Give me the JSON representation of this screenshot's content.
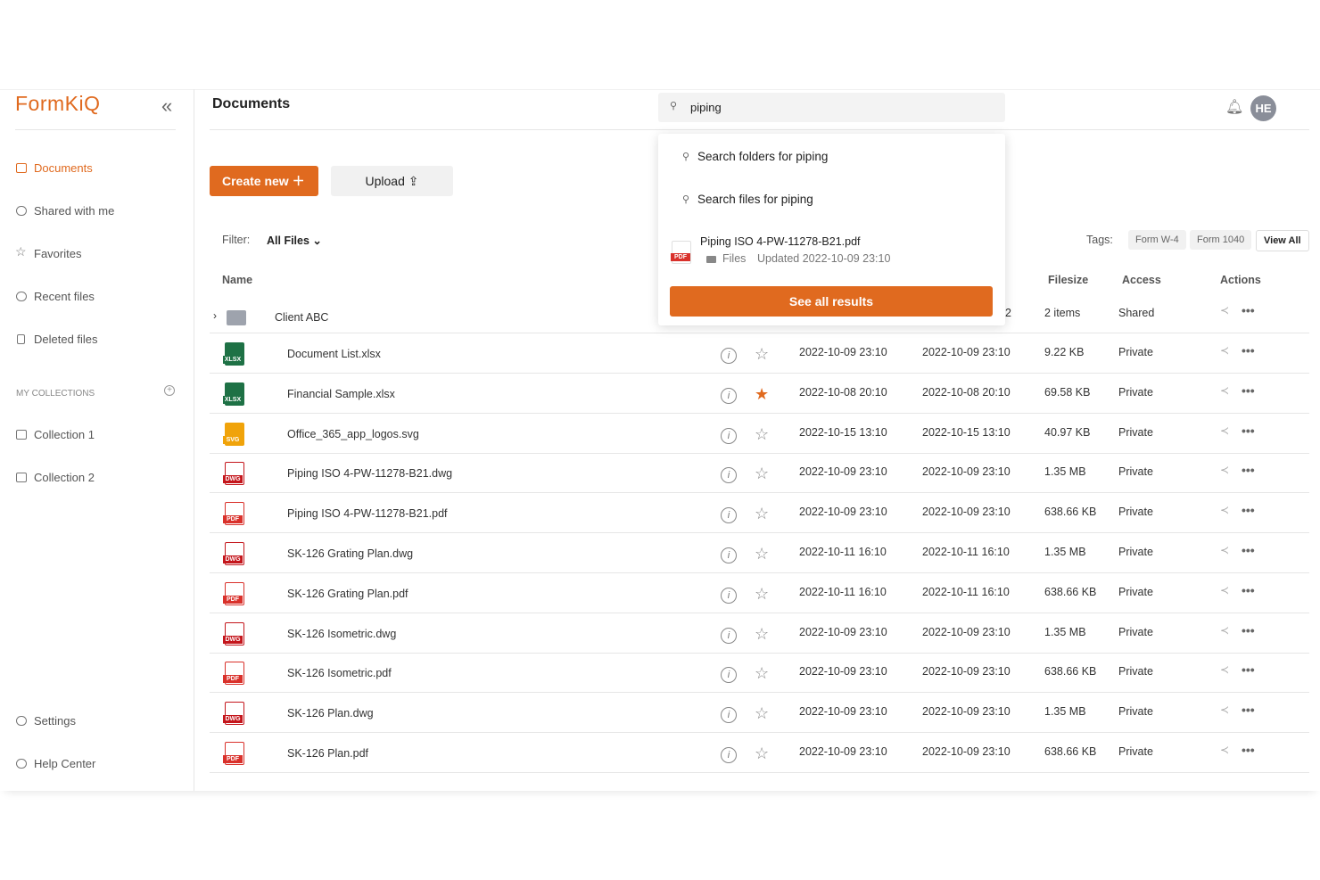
{
  "brand": "FormKiQ",
  "sidebar": {
    "nav": [
      "Documents",
      "Shared with me",
      "Favorites",
      "Recent files",
      "Deleted files"
    ],
    "collections_heading": "MY COLLECTIONS",
    "collections": [
      "Collection 1",
      "Collection 2"
    ],
    "footer": [
      "Settings",
      "Help Center"
    ]
  },
  "header": {
    "title": "Documents",
    "search": "piping",
    "avatar": "HE"
  },
  "toolbar": {
    "create": "Create new",
    "upload": "Upload",
    "filter_label": "Filter:",
    "filter_value": "All Files",
    "tags_label": "Tags:",
    "tags": [
      "Form W-4",
      "Form 1040"
    ],
    "view_all": "View All"
  },
  "table": {
    "columns": [
      "Name",
      "Filesize",
      "Access",
      "Actions"
    ],
    "folder": {
      "name": "Client ABC",
      "count": "2",
      "size": "2 items",
      "access": "Shared"
    },
    "rows": [
      {
        "icon": "XLSX",
        "name": "Document List.xlsx",
        "favorite": false,
        "created": "2022-10-09 23:10",
        "modified": "2022-10-09 23:10",
        "size": "9.22 KB",
        "access": "Private"
      },
      {
        "icon": "XLSX",
        "name": "Financial Sample.xlsx",
        "favorite": true,
        "created": "2022-10-08 20:10",
        "modified": "2022-10-08 20:10",
        "size": "69.58 KB",
        "access": "Private"
      },
      {
        "icon": "SVG",
        "name": "Office_365_app_logos.svg",
        "favorite": false,
        "created": "2022-10-15 13:10",
        "modified": "2022-10-15 13:10",
        "size": "40.97 KB",
        "access": "Private"
      },
      {
        "icon": "DWG",
        "name": "Piping ISO 4-PW-11278-B21.dwg",
        "favorite": false,
        "created": "2022-10-09 23:10",
        "modified": "2022-10-09 23:10",
        "size": "1.35 MB",
        "access": "Private"
      },
      {
        "icon": "PDF",
        "name": "Piping ISO 4-PW-11278-B21.pdf",
        "favorite": false,
        "created": "2022-10-09 23:10",
        "modified": "2022-10-09 23:10",
        "size": "638.66 KB",
        "access": "Private"
      },
      {
        "icon": "DWG",
        "name": "SK-126 Grating Plan.dwg",
        "favorite": false,
        "created": "2022-10-11 16:10",
        "modified": "2022-10-11 16:10",
        "size": "1.35 MB",
        "access": "Private"
      },
      {
        "icon": "PDF",
        "name": "SK-126 Grating Plan.pdf",
        "favorite": false,
        "created": "2022-10-11 16:10",
        "modified": "2022-10-11 16:10",
        "size": "638.66 KB",
        "access": "Private"
      },
      {
        "icon": "DWG",
        "name": "SK-126 Isometric.dwg",
        "favorite": false,
        "created": "2022-10-09 23:10",
        "modified": "2022-10-09 23:10",
        "size": "1.35 MB",
        "access": "Private"
      },
      {
        "icon": "PDF",
        "name": "SK-126 Isometric.pdf",
        "favorite": false,
        "created": "2022-10-09 23:10",
        "modified": "2022-10-09 23:10",
        "size": "638.66 KB",
        "access": "Private"
      },
      {
        "icon": "DWG",
        "name": "SK-126 Plan.dwg",
        "favorite": false,
        "created": "2022-10-09 23:10",
        "modified": "2022-10-09 23:10",
        "size": "1.35 MB",
        "access": "Private"
      },
      {
        "icon": "PDF",
        "name": "SK-126 Plan.pdf",
        "favorite": false,
        "created": "2022-10-09 23:10",
        "modified": "2022-10-09 23:10",
        "size": "638.66 KB",
        "access": "Private"
      }
    ]
  },
  "search_dropdown": {
    "folders": "Search folders for piping",
    "files": "Search files for piping",
    "result": {
      "icon": "PDF",
      "name": "Piping ISO 4-PW-11278-B21.pdf",
      "folder": "Files",
      "updated": "Updated 2022-10-09 23:10"
    },
    "see_all": "See all results"
  }
}
